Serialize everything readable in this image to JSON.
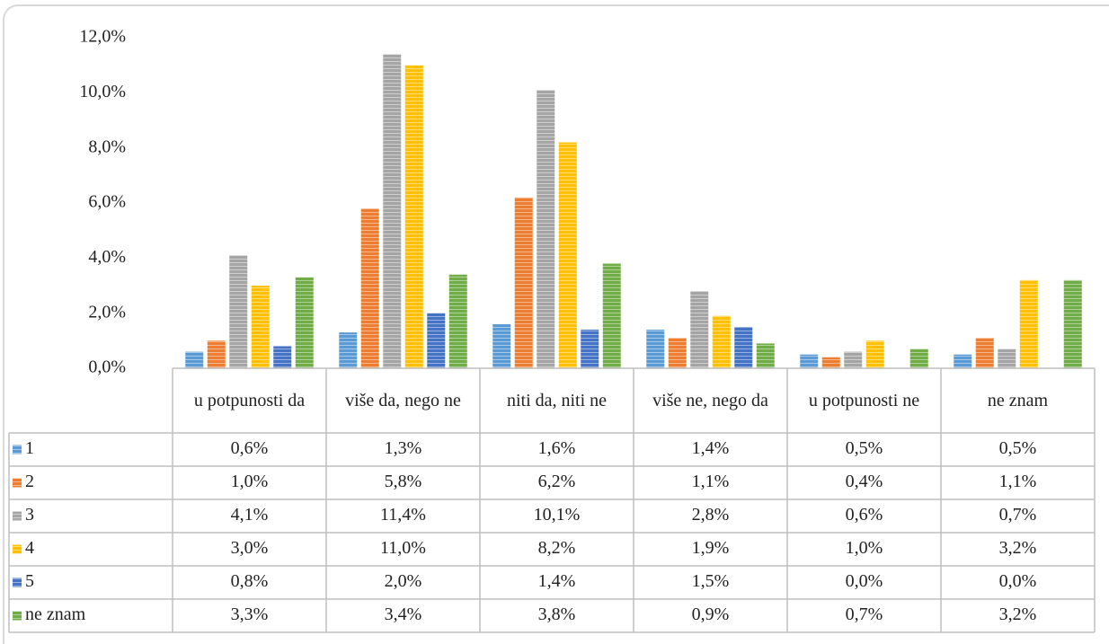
{
  "chart_data": {
    "type": "bar",
    "categories": [
      "u potpunosti da",
      "više da, nego ne",
      "niti da, niti ne",
      "više ne, nego da",
      "u potpunosti ne",
      "ne znam"
    ],
    "series": [
      {
        "name": "1",
        "color": "#5b9bd5",
        "values": [
          0.6,
          1.3,
          1.6,
          1.4,
          0.5,
          0.5
        ],
        "value_labels": [
          "0,6%",
          "1,3%",
          "1,6%",
          "1,4%",
          "0,5%",
          "0,5%"
        ]
      },
      {
        "name": "2",
        "color": "#ed7d31",
        "values": [
          1.0,
          5.8,
          6.2,
          1.1,
          0.4,
          1.1
        ],
        "value_labels": [
          "1,0%",
          "5,8%",
          "6,2%",
          "1,1%",
          "0,4%",
          "1,1%"
        ]
      },
      {
        "name": "3",
        "color": "#a5a5a5",
        "values": [
          4.1,
          11.4,
          10.1,
          2.8,
          0.6,
          0.7
        ],
        "value_labels": [
          "4,1%",
          "11,4%",
          "10,1%",
          "2,8%",
          "0,6%",
          "0,7%"
        ]
      },
      {
        "name": "4",
        "color": "#ffc000",
        "values": [
          3.0,
          11.0,
          8.2,
          1.9,
          1.0,
          3.2
        ],
        "value_labels": [
          "3,0%",
          "11,0%",
          "8,2%",
          "1,9%",
          "1,0%",
          "3,2%"
        ]
      },
      {
        "name": "5",
        "color": "#4472c4",
        "values": [
          0.8,
          2.0,
          1.4,
          1.5,
          0.0,
          0.0
        ],
        "value_labels": [
          "0,8%",
          "2,0%",
          "1,4%",
          "1,5%",
          "0,0%",
          "0,0%"
        ]
      },
      {
        "name": "ne znam",
        "color": "#70ad47",
        "values": [
          3.3,
          3.4,
          3.8,
          0.9,
          0.7,
          3.2
        ],
        "value_labels": [
          "3,3%",
          "3,4%",
          "3,8%",
          "0,9%",
          "0,7%",
          "3,2%"
        ]
      }
    ],
    "ylim": [
      0,
      12
    ],
    "yticks": [
      {
        "value": 0,
        "label": "0,0%"
      },
      {
        "value": 2,
        "label": "2,0%"
      },
      {
        "value": 4,
        "label": "4,0%"
      },
      {
        "value": 6,
        "label": "6,0%"
      },
      {
        "value": 8,
        "label": "8,0%"
      },
      {
        "value": 10,
        "label": "10,0%"
      },
      {
        "value": 12,
        "label": "12,0%"
      }
    ],
    "grid": false
  }
}
